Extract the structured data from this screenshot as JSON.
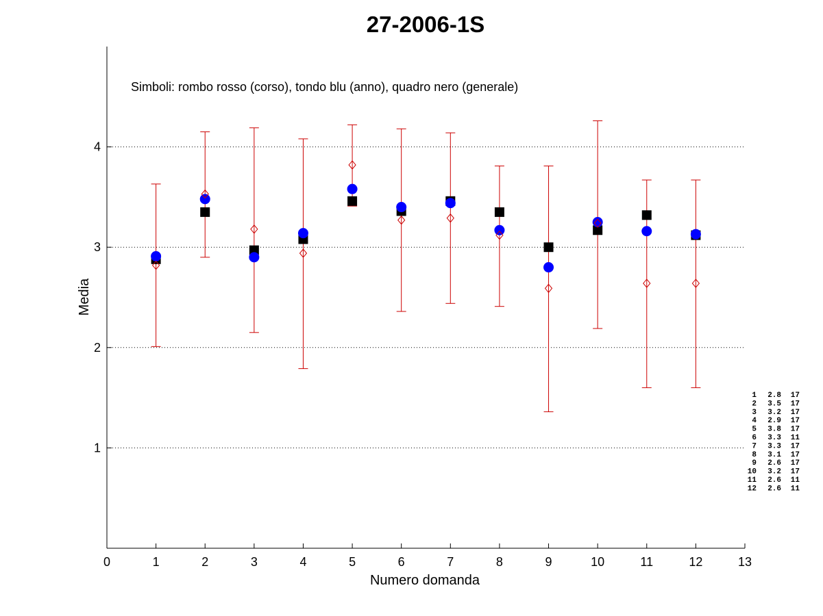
{
  "chart_data": {
    "type": "scatter",
    "title": "27-2006-1S",
    "xlabel": "Numero domanda",
    "ylabel": "Media",
    "xlim": [
      0,
      13
    ],
    "ylim": [
      0,
      5
    ],
    "xticks": [
      0,
      1,
      2,
      3,
      4,
      5,
      6,
      7,
      8,
      9,
      10,
      11,
      12,
      13
    ],
    "yticks": [
      1,
      2,
      3,
      4
    ],
    "grid": "horizontal dotted at y ticks",
    "annotation": "Simboli: rombo rosso (corso), tondo blu (anno), quadro nero (generale)",
    "x": [
      1,
      2,
      3,
      4,
      5,
      6,
      7,
      8,
      9,
      10,
      11,
      12
    ],
    "series": [
      {
        "symbol": "red-diamond",
        "color": "#cc0000",
        "values": [
          2.82,
          3.53,
          3.18,
          2.94,
          3.82,
          3.27,
          3.29,
          3.12,
          2.59,
          3.24,
          2.64,
          2.64
        ],
        "error_low": [
          2.01,
          2.9,
          2.15,
          1.79,
          3.41,
          2.36,
          2.44,
          2.41,
          1.36,
          2.19,
          1.6,
          1.6
        ],
        "error_high": [
          3.63,
          4.15,
          4.19,
          4.08,
          4.22,
          4.18,
          4.14,
          3.81,
          3.81,
          4.26,
          3.67,
          3.67
        ]
      },
      {
        "symbol": "blue-circle",
        "color": "#0000ff",
        "values": [
          2.91,
          3.48,
          2.9,
          3.14,
          3.58,
          3.4,
          3.44,
          3.17,
          2.8,
          3.25,
          3.16,
          3.13
        ]
      },
      {
        "symbol": "black-square",
        "color": "#000000",
        "values": [
          2.88,
          3.35,
          2.97,
          3.08,
          3.46,
          3.36,
          3.46,
          3.35,
          3.0,
          3.17,
          3.32,
          3.12
        ]
      }
    ],
    "side_table": [
      [
        "1",
        "2.8",
        "17"
      ],
      [
        "2",
        "3.5",
        "17"
      ],
      [
        "3",
        "3.2",
        "17"
      ],
      [
        "4",
        "2.9",
        "17"
      ],
      [
        "5",
        "3.8",
        "17"
      ],
      [
        "6",
        "3.3",
        "11"
      ],
      [
        "7",
        "3.3",
        "17"
      ],
      [
        "8",
        "3.1",
        "17"
      ],
      [
        "9",
        "2.6",
        "17"
      ],
      [
        "10",
        "3.2",
        "17"
      ],
      [
        "11",
        "2.6",
        "11"
      ],
      [
        "12",
        "2.6",
        "11"
      ]
    ]
  }
}
